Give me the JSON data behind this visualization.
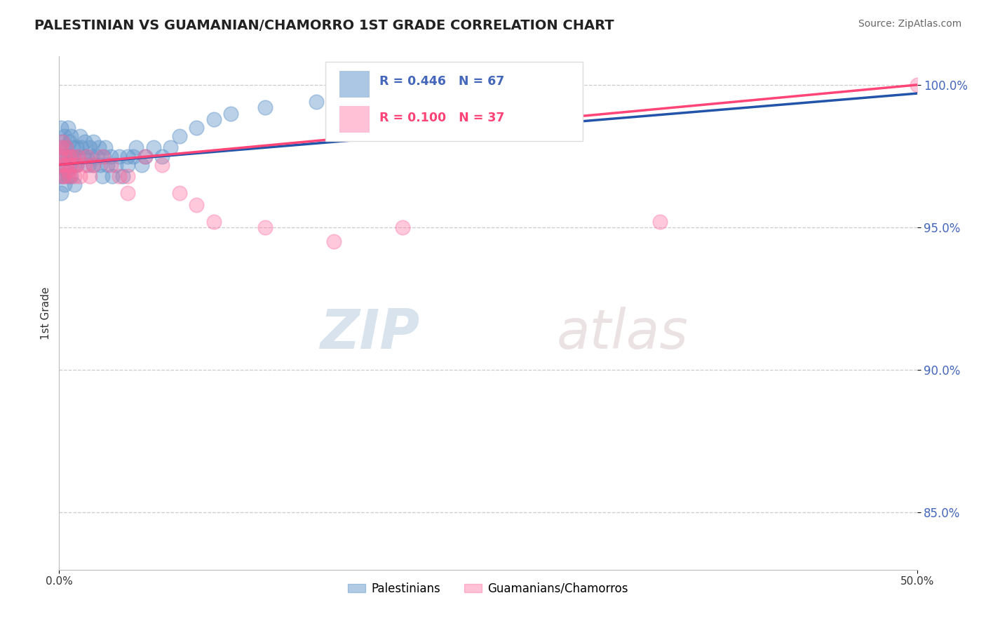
{
  "title": "PALESTINIAN VS GUAMANIAN/CHAMORRO 1ST GRADE CORRELATION CHART",
  "source": "Source: ZipAtlas.com",
  "ylabel": "1st Grade",
  "y_tick_vals": [
    0.85,
    0.9,
    0.95,
    1.0
  ],
  "y_tick_labels": [
    "85.0%",
    "90.0%",
    "95.0%",
    "100.0%"
  ],
  "legend1_label": "Palestinians",
  "legend2_label": "Guamanians/Chamorros",
  "R1": 0.446,
  "N1": 67,
  "R2": 0.1,
  "N2": 37,
  "blue_color": "#6699CC",
  "pink_color": "#FF6699",
  "blue_line_color": "#2255AA",
  "pink_line_color": "#FF4477",
  "tick_label_color": "#4466BB",
  "blue_scatter_x": [
    0.0,
    0.0,
    0.001,
    0.001,
    0.001,
    0.002,
    0.002,
    0.002,
    0.003,
    0.003,
    0.003,
    0.004,
    0.004,
    0.005,
    0.005,
    0.005,
    0.006,
    0.006,
    0.007,
    0.007,
    0.007,
    0.008,
    0.008,
    0.009,
    0.009,
    0.01,
    0.01,
    0.011,
    0.012,
    0.013,
    0.014,
    0.015,
    0.016,
    0.017,
    0.018,
    0.019,
    0.02,
    0.02,
    0.022,
    0.023,
    0.024,
    0.025,
    0.026,
    0.027,
    0.028,
    0.03,
    0.031,
    0.033,
    0.035,
    0.037,
    0.04,
    0.04,
    0.043,
    0.045,
    0.048,
    0.05,
    0.055,
    0.06,
    0.065,
    0.07,
    0.08,
    0.09,
    0.1,
    0.12,
    0.15,
    0.2,
    0.25
  ],
  "blue_scatter_y": [
    0.972,
    0.968,
    0.985,
    0.978,
    0.962,
    0.98,
    0.975,
    0.968,
    0.982,
    0.975,
    0.965,
    0.978,
    0.97,
    0.985,
    0.975,
    0.968,
    0.98,
    0.972,
    0.975,
    0.968,
    0.982,
    0.975,
    0.978,
    0.972,
    0.965,
    0.978,
    0.972,
    0.975,
    0.982,
    0.978,
    0.975,
    0.98,
    0.975,
    0.972,
    0.978,
    0.975,
    0.98,
    0.972,
    0.975,
    0.978,
    0.972,
    0.968,
    0.975,
    0.978,
    0.972,
    0.975,
    0.968,
    0.972,
    0.975,
    0.968,
    0.975,
    0.972,
    0.975,
    0.978,
    0.972,
    0.975,
    0.978,
    0.975,
    0.978,
    0.982,
    0.985,
    0.988,
    0.99,
    0.992,
    0.994,
    0.996,
    0.998
  ],
  "pink_scatter_x": [
    0.0,
    0.001,
    0.001,
    0.002,
    0.002,
    0.003,
    0.003,
    0.004,
    0.004,
    0.005,
    0.006,
    0.006,
    0.007,
    0.008,
    0.009,
    0.01,
    0.011,
    0.012,
    0.015,
    0.016,
    0.018,
    0.02,
    0.025,
    0.03,
    0.035,
    0.04,
    0.04,
    0.05,
    0.06,
    0.07,
    0.08,
    0.09,
    0.12,
    0.16,
    0.2,
    0.35,
    0.5
  ],
  "pink_scatter_y": [
    0.975,
    0.978,
    0.972,
    0.968,
    0.98,
    0.975,
    0.968,
    0.972,
    0.978,
    0.97,
    0.975,
    0.968,
    0.972,
    0.975,
    0.968,
    0.972,
    0.975,
    0.968,
    0.972,
    0.975,
    0.968,
    0.972,
    0.975,
    0.972,
    0.968,
    0.968,
    0.962,
    0.975,
    0.972,
    0.962,
    0.958,
    0.952,
    0.95,
    0.945,
    0.95,
    0.952,
    1.0
  ],
  "xlim": [
    0.0,
    0.5
  ],
  "ylim": [
    0.83,
    1.01
  ]
}
